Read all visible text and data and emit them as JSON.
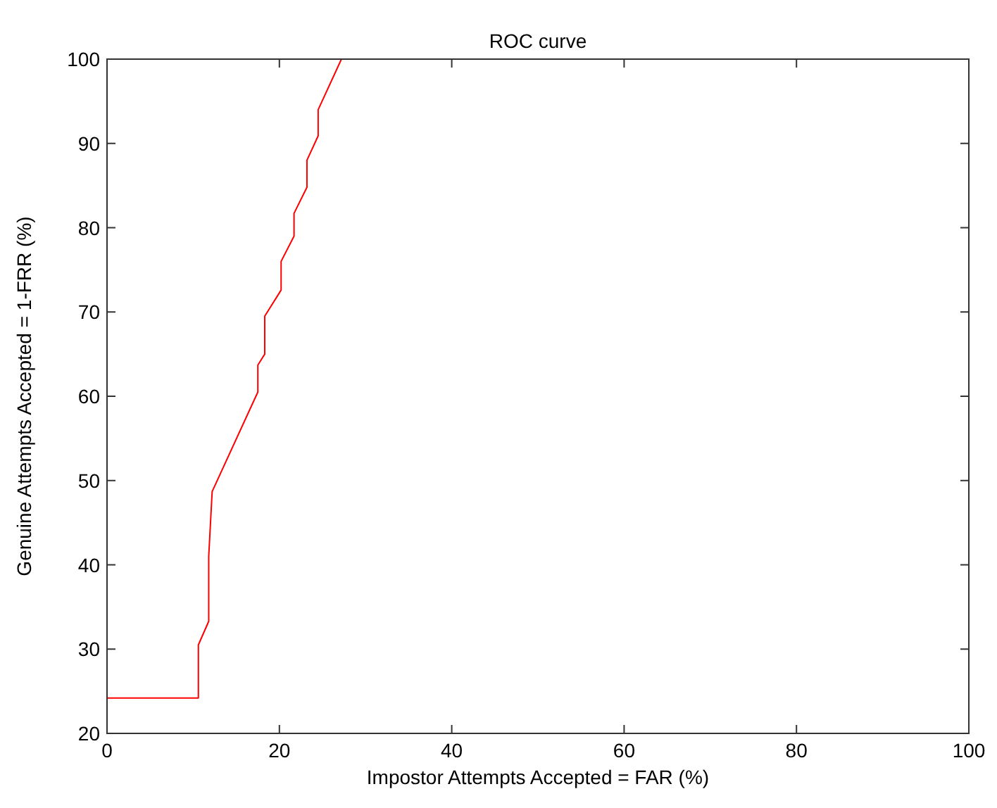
{
  "chart_data": {
    "type": "line",
    "title": "ROC curve",
    "xlabel": "Impostor Attempts Accepted = FAR (%)",
    "ylabel": "Genuine Attempts Accepted = 1-FRR (%)",
    "x": [
      0,
      10.6,
      10.6,
      11.8,
      11.8,
      12.2,
      17.5,
      17.5,
      18.3,
      18.3,
      20.2,
      20.2,
      21.7,
      21.7,
      23.2,
      23.2,
      24.5,
      24.5,
      27.2
    ],
    "series": [
      {
        "color": "#ff0000",
        "values": [
          24.2,
          24.2,
          30.5,
          33.3,
          41,
          48.7,
          60.5,
          63.7,
          65,
          69.5,
          72.6,
          76,
          79,
          81.7,
          84.8,
          88,
          90.9,
          94,
          100
        ]
      }
    ],
    "xlim": [
      0,
      100
    ],
    "ylim": [
      20,
      100
    ],
    "xticks": [
      0,
      20,
      40,
      60,
      80,
      100
    ],
    "yticks": [
      20,
      30,
      40,
      50,
      60,
      70,
      80,
      90,
      100
    ],
    "grid": false,
    "marker": "none",
    "line_style": "solid"
  }
}
